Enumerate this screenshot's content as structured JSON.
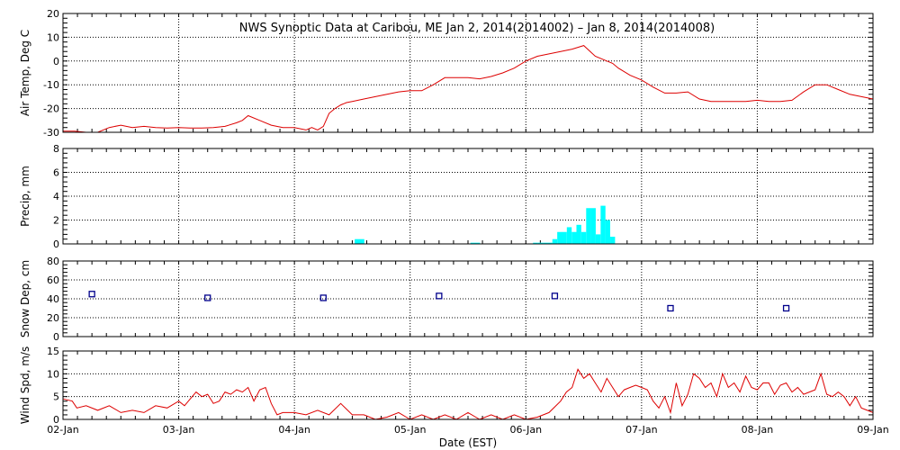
{
  "title": "NWS Synoptic Data at Caribou, ME   Jan  2, 2014(2014002) – Jan  8, 2014(2014008)",
  "xlabel": "Date (EST)",
  "colors": {
    "line": "#dd0000",
    "bar": "#00ffff",
    "marker": "#00008b",
    "grid": "#000000"
  },
  "chart_data": [
    {
      "type": "line",
      "ylabel": "Air Temp, Deg C",
      "ylim": [
        -30,
        20
      ],
      "yticks": [
        -30,
        -20,
        -10,
        0,
        10,
        20
      ],
      "xlim": [
        0,
        7
      ],
      "xticks": [
        "02-Jan",
        "03-Jan",
        "04-Jan",
        "05-Jan",
        "06-Jan",
        "07-Jan",
        "08-Jan",
        "09-Jan"
      ],
      "grid": true,
      "x": [
        0,
        0.1,
        0.2,
        0.3,
        0.4,
        0.5,
        0.6,
        0.7,
        0.8,
        0.9,
        1.0,
        1.1,
        1.2,
        1.3,
        1.4,
        1.5,
        1.55,
        1.6,
        1.7,
        1.8,
        1.9,
        2.0,
        2.1,
        2.15,
        2.2,
        2.25,
        2.3,
        2.35,
        2.4,
        2.45,
        2.5,
        2.6,
        2.7,
        2.8,
        2.9,
        3.0,
        3.1,
        3.2,
        3.3,
        3.4,
        3.5,
        3.6,
        3.7,
        3.8,
        3.9,
        4.0,
        4.1,
        4.2,
        4.3,
        4.4,
        4.5,
        4.6,
        4.7,
        4.75,
        4.8,
        4.9,
        5.0,
        5.1,
        5.2,
        5.3,
        5.4,
        5.5,
        5.6,
        5.7,
        5.8,
        5.9,
        6.0,
        6.1,
        6.2,
        6.3,
        6.4,
        6.5,
        6.6,
        6.7,
        6.8,
        6.9,
        7.0
      ],
      "values": [
        -29.5,
        -29.5,
        -31,
        -30,
        -28,
        -27,
        -28,
        -27.5,
        -28,
        -28.2,
        -28,
        -28.2,
        -28.2,
        -28,
        -27.5,
        -26,
        -25,
        -23,
        -25,
        -27,
        -28,
        -28,
        -29,
        -28,
        -29,
        -27.5,
        -22,
        -20,
        -18.5,
        -17.5,
        -17,
        -16,
        -15,
        -14,
        -13,
        -12.5,
        -12.5,
        -10,
        -7,
        -7,
        -7,
        -7.5,
        -6.5,
        -5,
        -3,
        0,
        2,
        3,
        4,
        5,
        6.5,
        2,
        0,
        -1,
        -3,
        -6,
        -8,
        -11,
        -13.5,
        -13.5,
        -13,
        -16,
        -17,
        -17,
        -17,
        -17,
        -16.5,
        -17,
        -17,
        -16.5,
        -13,
        -10,
        -10,
        -12,
        -14,
        -15,
        -16
      ]
    },
    {
      "type": "bar",
      "ylabel": "Precip, mm",
      "ylim": [
        0,
        8
      ],
      "yticks": [
        0,
        2,
        4,
        6,
        8
      ],
      "xlim": [
        0,
        7
      ],
      "grid": true,
      "bar_width": 0.0417,
      "x": [
        2.542,
        2.583,
        3.542,
        3.583,
        4.083,
        4.125,
        4.167,
        4.208,
        4.25,
        4.292,
        4.333,
        4.375,
        4.417,
        4.458,
        4.5,
        4.542,
        4.583,
        4.625,
        4.667,
        4.708,
        4.75
      ],
      "values": [
        0.4,
        0.4,
        0.1,
        0.1,
        0.1,
        0.1,
        0.1,
        0.1,
        0.4,
        1.0,
        1.0,
        1.4,
        1.0,
        1.6,
        1.0,
        3.0,
        3.0,
        0.8,
        3.2,
        2.0,
        0.6
      ]
    },
    {
      "type": "scatter",
      "ylabel": "Snow Dep, cm",
      "ylim": [
        0,
        80
      ],
      "yticks": [
        0,
        20,
        40,
        60,
        80
      ],
      "xlim": [
        0,
        7
      ],
      "grid": true,
      "x": [
        0.25,
        1.25,
        2.25,
        3.25,
        4.25,
        5.25,
        6.25
      ],
      "values": [
        45,
        41,
        41,
        43,
        43,
        30,
        30
      ]
    },
    {
      "type": "line",
      "ylabel": "Wind Spd, m/s",
      "ylim": [
        0,
        15
      ],
      "yticks": [
        0,
        5,
        10,
        15
      ],
      "xlim": [
        0,
        7
      ],
      "grid": true,
      "x": [
        0,
        0.08,
        0.12,
        0.2,
        0.3,
        0.4,
        0.5,
        0.6,
        0.7,
        0.8,
        0.9,
        1.0,
        1.05,
        1.1,
        1.15,
        1.2,
        1.25,
        1.3,
        1.35,
        1.4,
        1.45,
        1.5,
        1.55,
        1.6,
        1.65,
        1.7,
        1.75,
        1.8,
        1.85,
        1.9,
        2.0,
        2.1,
        2.2,
        2.3,
        2.4,
        2.5,
        2.6,
        2.7,
        2.8,
        2.9,
        3.0,
        3.1,
        3.2,
        3.3,
        3.4,
        3.5,
        3.6,
        3.7,
        3.8,
        3.9,
        4.0,
        4.1,
        4.2,
        4.3,
        4.35,
        4.4,
        4.45,
        4.5,
        4.55,
        4.6,
        4.65,
        4.7,
        4.75,
        4.8,
        4.85,
        4.9,
        4.95,
        5.0,
        5.05,
        5.1,
        5.15,
        5.2,
        5.25,
        5.3,
        5.35,
        5.4,
        5.45,
        5.5,
        5.55,
        5.6,
        5.65,
        5.7,
        5.75,
        5.8,
        5.85,
        5.9,
        5.95,
        6.0,
        6.05,
        6.1,
        6.15,
        6.2,
        6.25,
        6.3,
        6.35,
        6.4,
        6.45,
        6.5,
        6.55,
        6.6,
        6.65,
        6.7,
        6.75,
        6.8,
        6.85,
        6.9,
        6.95,
        7.0
      ],
      "values": [
        4.5,
        4,
        2.5,
        3,
        2,
        3,
        1.5,
        2,
        1.5,
        3,
        2.5,
        4,
        3,
        4.5,
        6,
        5,
        5.5,
        3.5,
        4,
        6,
        5.5,
        6.5,
        6,
        7,
        4,
        6.5,
        7,
        3.5,
        1,
        1.5,
        1.5,
        1,
        2,
        1,
        3.5,
        1,
        1,
        0,
        0.5,
        1.5,
        0,
        1,
        0,
        1,
        0,
        1.5,
        0,
        1,
        0,
        1,
        0,
        0.5,
        1.5,
        4,
        6,
        7,
        11,
        9,
        10,
        8,
        6,
        9,
        7,
        5,
        6.5,
        7,
        7.5,
        7,
        6.5,
        4,
        2.5,
        5,
        1.5,
        8,
        3,
        5.5,
        10,
        9,
        7,
        8,
        5,
        10,
        7,
        8,
        6,
        9.5,
        7,
        6.5,
        8,
        8,
        5.5,
        7.5,
        8,
        6,
        7,
        5.5,
        6,
        6.5,
        10,
        5.5,
        5,
        6,
        5,
        3,
        5,
        2.5,
        2,
        1.5
      ]
    }
  ]
}
